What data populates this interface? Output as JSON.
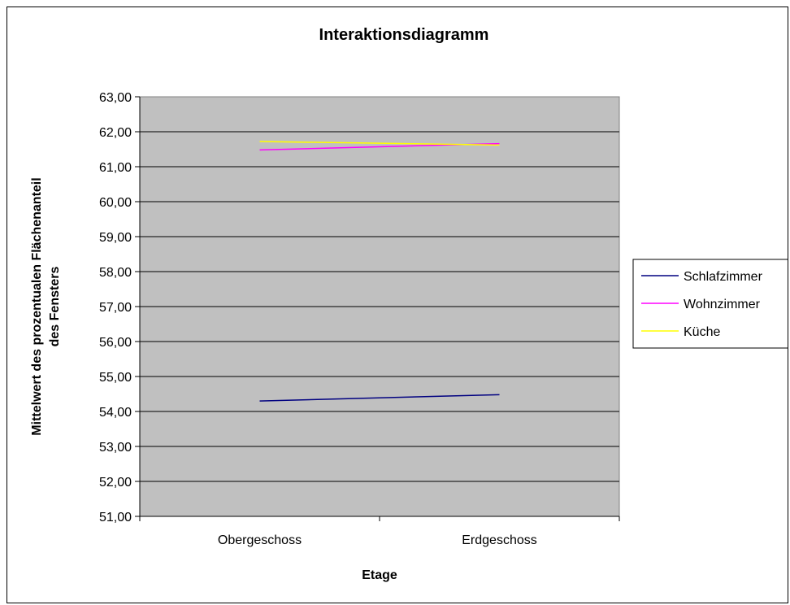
{
  "chart_data": {
    "type": "line",
    "title": "Interaktionsdiagramm",
    "xlabel": "Etage",
    "ylabel_lines": [
      "Mittelwert des prozentualen Flächenanteil",
      "des Fensters"
    ],
    "categories": [
      "Obergeschoss",
      "Erdgeschoss"
    ],
    "ylim": [
      51,
      63
    ],
    "yticks": [
      "51,00",
      "52,00",
      "53,00",
      "54,00",
      "55,00",
      "56,00",
      "57,00",
      "58,00",
      "59,00",
      "60,00",
      "61,00",
      "62,00",
      "63,00"
    ],
    "grid": true,
    "plot_background": "#c0c0c0",
    "legend_position": "right",
    "series": [
      {
        "name": "Schlafzimmer",
        "values": [
          54.3,
          54.48
        ],
        "color": "#000080"
      },
      {
        "name": "Wohnzimmer",
        "values": [
          61.48,
          61.66
        ],
        "color": "#ff00ff"
      },
      {
        "name": "Küche",
        "values": [
          61.72,
          61.62
        ],
        "color": "#ffff00"
      }
    ]
  }
}
